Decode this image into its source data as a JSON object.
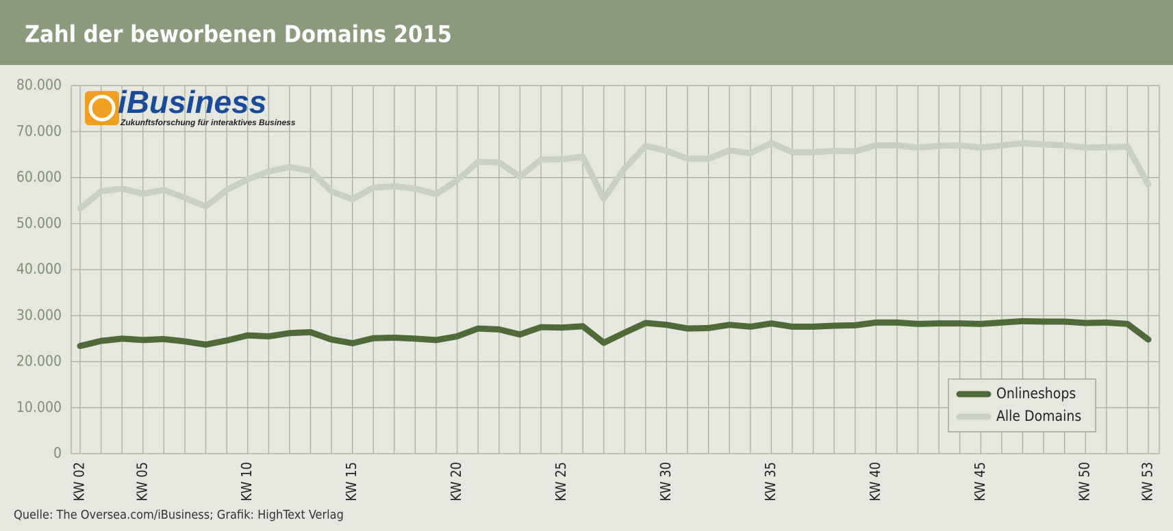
{
  "chart_data": {
    "type": "line",
    "title": "Zahl der beworbenen Domains 2015",
    "source": "Quelle: The Oversea.com/iBusiness; Grafik: HighText Verlag",
    "logo": {
      "name": "iBusiness",
      "tagline": "Zukunftsforschung für interaktives Business"
    },
    "categories": [
      "KW 02",
      null,
      null,
      "KW 05",
      null,
      null,
      null,
      null,
      "KW 10",
      null,
      null,
      null,
      null,
      "KW 15",
      null,
      null,
      null,
      null,
      "KW 20",
      null,
      null,
      null,
      null,
      "KW 25",
      null,
      null,
      null,
      null,
      "KW 30",
      null,
      null,
      null,
      null,
      "KW 35",
      null,
      null,
      null,
      null,
      "KW 40",
      null,
      null,
      null,
      null,
      "KW 45",
      null,
      null,
      null,
      null,
      "KW 50",
      null,
      null,
      "KW 53"
    ],
    "series": [
      {
        "name": "Onlineshops",
        "color": "#4e6a38",
        "values": [
          23400,
          24500,
          25000,
          24700,
          24900,
          24400,
          23700,
          24600,
          25700,
          25500,
          26200,
          26400,
          24800,
          24000,
          25100,
          25200,
          25000,
          24700,
          25500,
          27200,
          27000,
          25900,
          27500,
          27400,
          27700,
          24100,
          26300,
          28400,
          28000,
          27200,
          27300,
          28000,
          27600,
          28300,
          27600,
          27600,
          27800,
          27900,
          28500,
          28500,
          28200,
          28300,
          28300,
          28200,
          28500,
          28800,
          28700,
          28700,
          28400,
          28500,
          28200,
          24800
        ]
      },
      {
        "name": "Alle Domains",
        "color": "#c8d1c1",
        "values": [
          53300,
          57000,
          57600,
          56500,
          57300,
          55600,
          53700,
          57300,
          59600,
          61300,
          62300,
          61500,
          57000,
          55300,
          57800,
          58100,
          57600,
          56400,
          59400,
          63400,
          63300,
          60200,
          63900,
          64000,
          64500,
          55400,
          62000,
          66900,
          65800,
          64100,
          64100,
          65900,
          65300,
          67500,
          65500,
          65500,
          65800,
          65700,
          67000,
          67000,
          66500,
          66900,
          67000,
          66500,
          67000,
          67500,
          67200,
          67000,
          66500,
          66600,
          66700,
          58500
        ]
      }
    ],
    "ylim": [
      0,
      80000
    ],
    "yticks": [
      0,
      {
        "value": 10000,
        "label": "10.000"
      },
      {
        "value": 20000,
        "label": "20.000"
      },
      {
        "value": 30000,
        "label": "30.000"
      },
      {
        "value": 40000,
        "label": "40.000"
      },
      {
        "value": 50000,
        "label": "50.000"
      },
      {
        "value": 60000,
        "label": "60.000"
      },
      {
        "value": 70000,
        "label": "70.000"
      },
      {
        "value": 80000,
        "label": "80.000"
      }
    ],
    "grid": true,
    "legend": "lower right"
  }
}
